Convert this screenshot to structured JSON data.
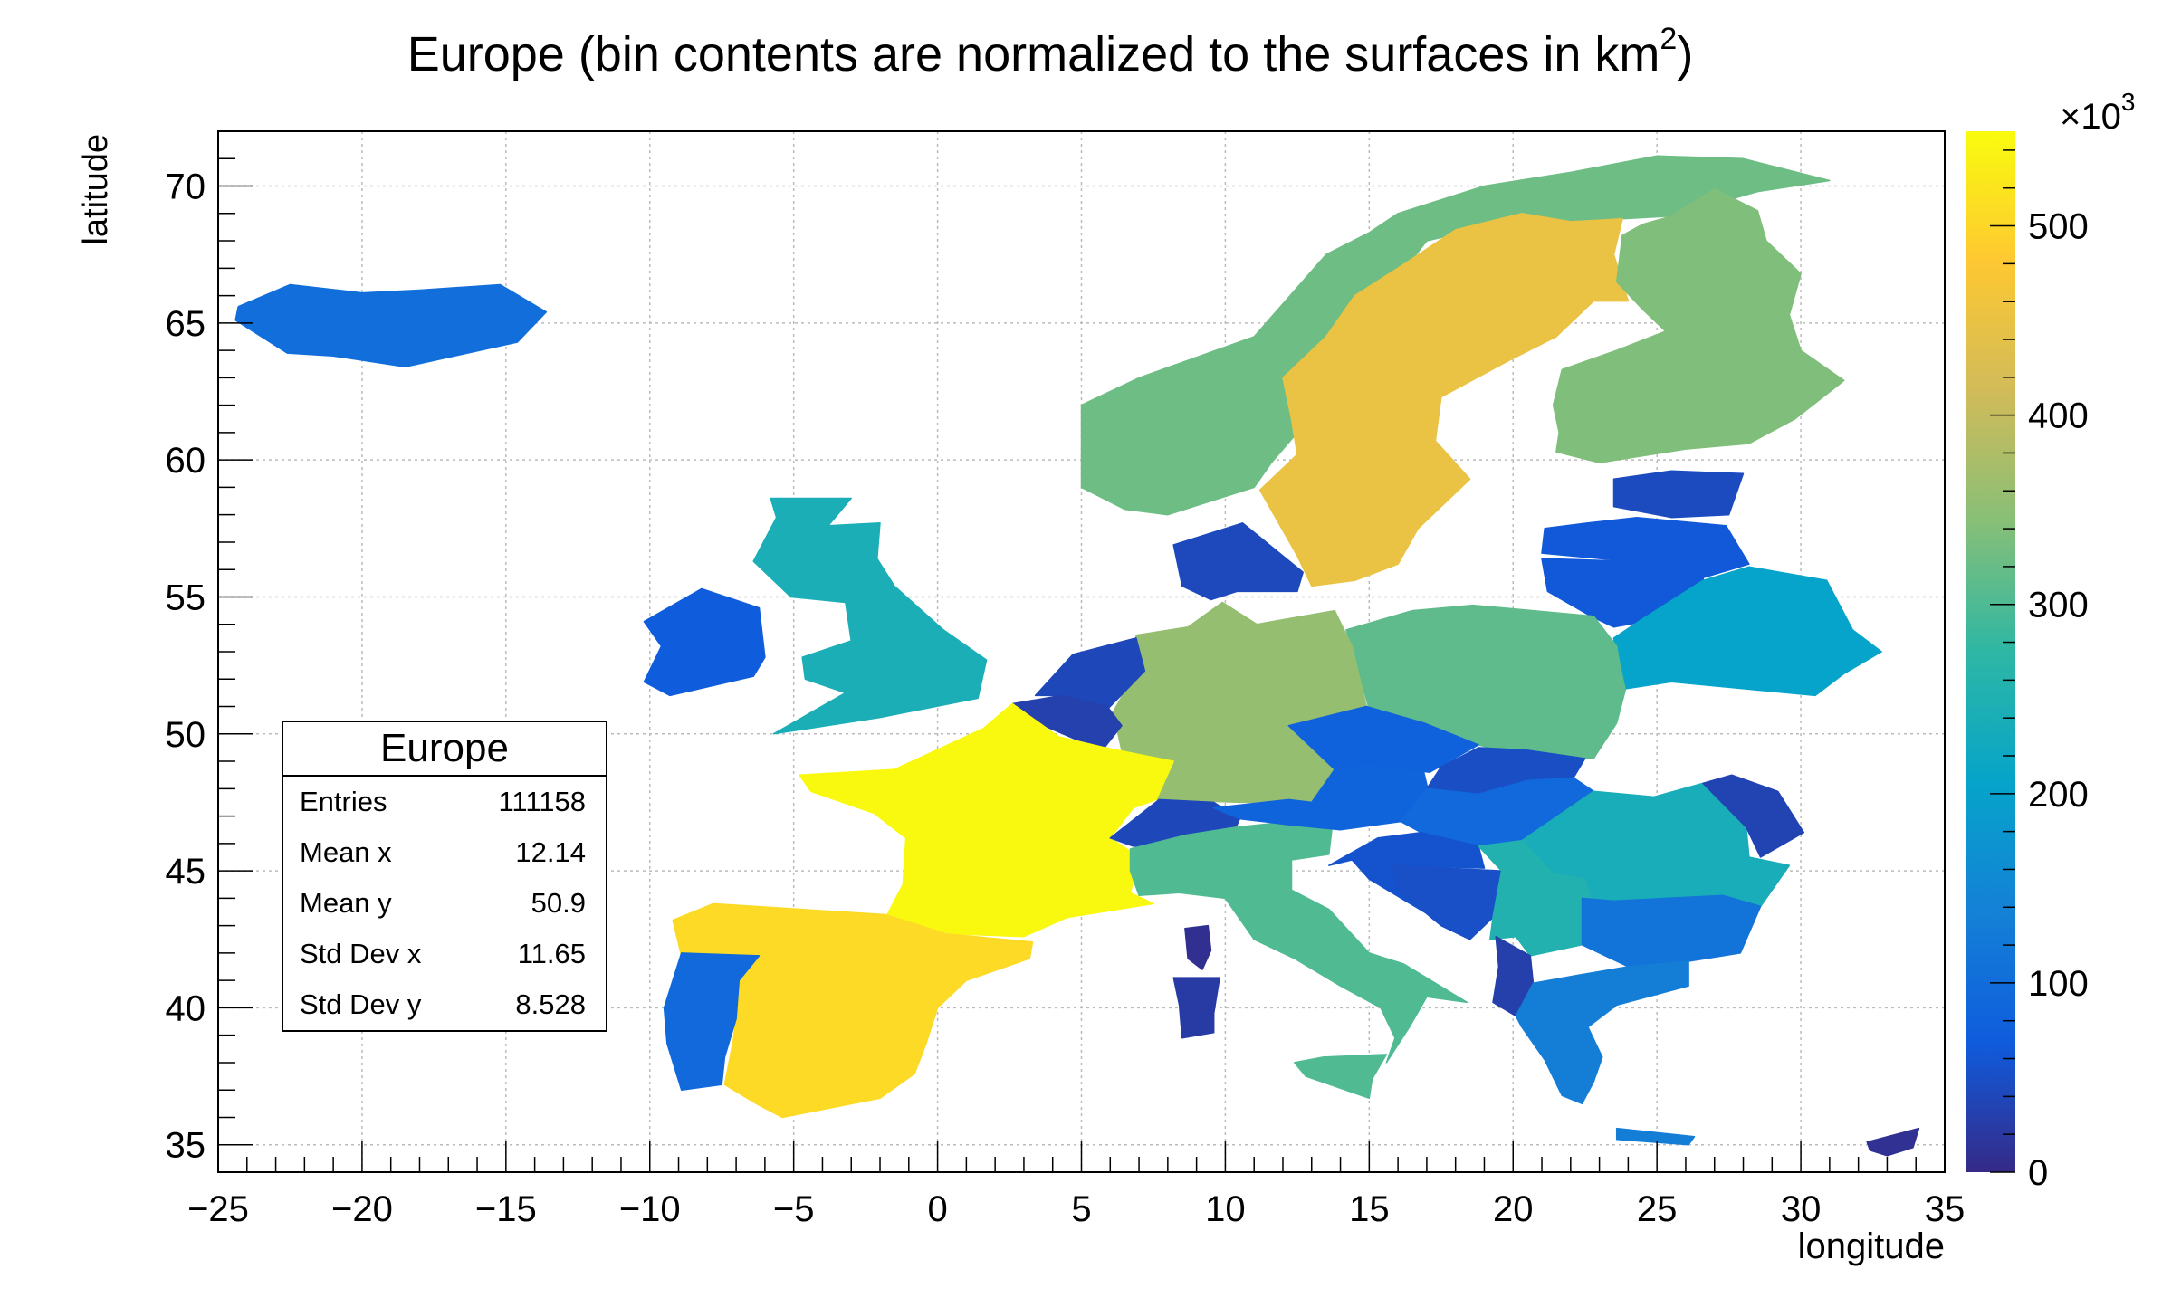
{
  "chart_data": {
    "type": "heatmap",
    "title_prefix": "Europe (bin contents are normalized to the surfaces in km",
    "title_sup": "2",
    "title_suffix": ")",
    "xlabel": "longitude",
    "ylabel": "latitude",
    "xlim": [
      -25,
      35
    ],
    "ylim": [
      34,
      72
    ],
    "x_ticks": [
      -25,
      -20,
      -15,
      -10,
      -5,
      0,
      5,
      10,
      15,
      20,
      25,
      30,
      35
    ],
    "y_ticks": [
      35,
      40,
      45,
      50,
      55,
      60,
      65,
      70
    ],
    "grid": true,
    "colorbar": {
      "range": [
        0,
        550
      ],
      "tick_values": [
        0,
        100,
        200,
        300,
        400,
        500
      ],
      "multiplier_prefix": "×10",
      "multiplier_exp": "3",
      "palette": [
        "#352a87",
        "#0f5cdd",
        "#1481d6",
        "#06a4ca",
        "#2eb7a4",
        "#87bf77",
        "#d1bb59",
        "#fec832",
        "#f9fb0e"
      ]
    },
    "regions": [
      {
        "name": "Iceland",
        "value": 103
      },
      {
        "name": "Ireland",
        "value": 70
      },
      {
        "name": "United Kingdom",
        "value": 243
      },
      {
        "name": "Norway",
        "value": 324
      },
      {
        "name": "Sweden",
        "value": 450
      },
      {
        "name": "Finland",
        "value": 338
      },
      {
        "name": "Denmark",
        "value": 43
      },
      {
        "name": "Estonia",
        "value": 45
      },
      {
        "name": "Latvia",
        "value": 65
      },
      {
        "name": "Lithuania",
        "value": 65
      },
      {
        "name": "Belarus",
        "value": 207
      },
      {
        "name": "Poland",
        "value": 313
      },
      {
        "name": "Germany",
        "value": 357
      },
      {
        "name": "Netherlands",
        "value": 41
      },
      {
        "name": "Belgium",
        "value": 31
      },
      {
        "name": "France",
        "value": 547
      },
      {
        "name": "Spain",
        "value": 506
      },
      {
        "name": "Portugal",
        "value": 92
      },
      {
        "name": "Switzerland",
        "value": 41
      },
      {
        "name": "Italy",
        "value": 301
      },
      {
        "name": "Austria",
        "value": 84
      },
      {
        "name": "Czech Republic",
        "value": 79
      },
      {
        "name": "Slovakia",
        "value": 49
      },
      {
        "name": "Hungary",
        "value": 93
      },
      {
        "name": "Romania",
        "value": 238
      },
      {
        "name": "Moldova",
        "value": 34
      },
      {
        "name": "Serbia",
        "value": 255
      },
      {
        "name": "Croatia",
        "value": 57
      },
      {
        "name": "Bosnia and Herzegovina",
        "value": 51
      },
      {
        "name": "Bulgaria",
        "value": 111
      },
      {
        "name": "Greece",
        "value": 132
      },
      {
        "name": "Albania",
        "value": 29
      },
      {
        "name": "Cyprus",
        "value": 9
      },
      {
        "name": "Corsica",
        "value": 8
      },
      {
        "name": "Sardinia",
        "value": 24
      }
    ]
  },
  "stats": {
    "title": "Europe",
    "rows": [
      {
        "label": "Entries",
        "value": "111158"
      },
      {
        "label": "Mean x",
        "value": "12.14"
      },
      {
        "label": "Mean y",
        "value": "50.9"
      },
      {
        "label": "Std Dev x",
        "value": "11.65"
      },
      {
        "label": "Std Dev y",
        "value": "8.528"
      }
    ]
  }
}
